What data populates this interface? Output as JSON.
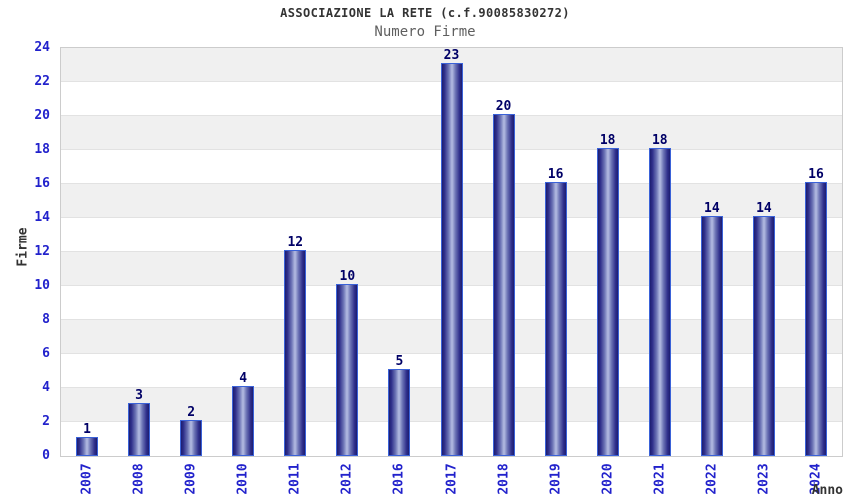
{
  "header": {
    "title": "ASSOCIAZIONE LA RETE (c.f.90085830272)",
    "subtitle": "Numero Firme"
  },
  "chart_data": {
    "type": "bar",
    "title": "ASSOCIAZIONE LA RETE (c.f.90085830272)",
    "subtitle": "Numero Firme",
    "xlabel": "Anno",
    "ylabel": "Firme",
    "categories": [
      "2007",
      "2008",
      "2009",
      "2010",
      "2011",
      "2012",
      "2016",
      "2017",
      "2018",
      "2019",
      "2020",
      "2021",
      "2022",
      "2023",
      "2024"
    ],
    "values": [
      1,
      3,
      2,
      4,
      12,
      10,
      5,
      23,
      20,
      16,
      18,
      18,
      14,
      14,
      16
    ],
    "ylim": [
      0,
      24
    ],
    "ytick_step": 2,
    "grid": true,
    "legend": "none",
    "band_pattern": "alternating 2-unit horizontal bands, gray on 2-4, 6-8, 10-12, 14-16, 18-20, 22-24",
    "colors": {
      "tick_label": "#2222cc",
      "value_label": "#000066",
      "bar_border": "#3a62d8",
      "bar_dark": "#1d1d70",
      "bar_mid": "#2e2e8a",
      "bar_light": "#aeb6de",
      "band_gray": "#f0f0f0",
      "gridline": "#e2e2e2",
      "frame": "#cccccc",
      "title": "#333333",
      "subtitle": "#5f5f5f"
    }
  }
}
